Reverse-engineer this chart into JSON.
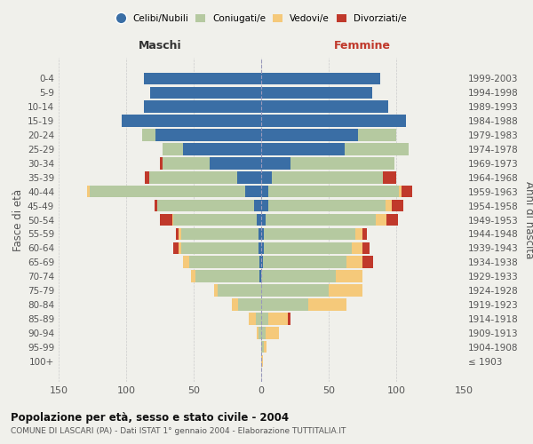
{
  "age_groups": [
    "100+",
    "95-99",
    "90-94",
    "85-89",
    "80-84",
    "75-79",
    "70-74",
    "65-69",
    "60-64",
    "55-59",
    "50-54",
    "45-49",
    "40-44",
    "35-39",
    "30-34",
    "25-29",
    "20-24",
    "15-19",
    "10-14",
    "5-9",
    "0-4"
  ],
  "birth_years": [
    "≤ 1903",
    "1904-1908",
    "1909-1913",
    "1914-1918",
    "1919-1923",
    "1924-1928",
    "1929-1933",
    "1934-1938",
    "1939-1943",
    "1944-1948",
    "1949-1953",
    "1954-1958",
    "1959-1963",
    "1964-1968",
    "1969-1973",
    "1974-1978",
    "1979-1983",
    "1984-1988",
    "1989-1993",
    "1994-1998",
    "1999-2003"
  ],
  "colors": {
    "celibi": "#3a6ea5",
    "coniugati": "#b5c9a0",
    "vedovi": "#f5c97a",
    "divorziati": "#c0392b"
  },
  "male": {
    "celibi": [
      0,
      0,
      0,
      0,
      0,
      0,
      1,
      1,
      2,
      2,
      3,
      5,
      12,
      18,
      38,
      58,
      78,
      103,
      87,
      82,
      87
    ],
    "coniugati": [
      0,
      0,
      2,
      4,
      17,
      32,
      48,
      52,
      57,
      57,
      62,
      72,
      115,
      65,
      35,
      15,
      10,
      0,
      0,
      0,
      0
    ],
    "vedovi": [
      0,
      0,
      1,
      5,
      5,
      3,
      3,
      5,
      2,
      2,
      1,
      0,
      2,
      0,
      0,
      0,
      0,
      0,
      0,
      0,
      0
    ],
    "divorziati": [
      0,
      0,
      0,
      0,
      0,
      0,
      0,
      0,
      4,
      2,
      9,
      2,
      0,
      3,
      2,
      0,
      0,
      0,
      0,
      0,
      0
    ]
  },
  "female": {
    "nubili": [
      0,
      0,
      0,
      0,
      0,
      0,
      0,
      1,
      2,
      2,
      3,
      5,
      5,
      8,
      22,
      62,
      72,
      107,
      94,
      82,
      88
    ],
    "coniugate": [
      0,
      2,
      3,
      5,
      35,
      50,
      55,
      62,
      65,
      68,
      82,
      87,
      97,
      82,
      77,
      47,
      28,
      0,
      0,
      0,
      0
    ],
    "vedove": [
      1,
      2,
      10,
      15,
      28,
      25,
      20,
      12,
      8,
      5,
      8,
      5,
      2,
      0,
      0,
      0,
      0,
      0,
      0,
      0,
      0
    ],
    "divorziate": [
      0,
      0,
      0,
      2,
      0,
      0,
      0,
      8,
      5,
      3,
      8,
      8,
      8,
      10,
      0,
      0,
      0,
      0,
      0,
      0,
      0
    ]
  },
  "xlim": [
    -150,
    150
  ],
  "xticks": [
    -150,
    -100,
    -50,
    0,
    50,
    100,
    150
  ],
  "xticklabels": [
    "150",
    "100",
    "50",
    "0",
    "50",
    "100",
    "150"
  ],
  "title": "Popolazione per età, sesso e stato civile - 2004",
  "subtitle": "COMUNE DI LASCARI (PA) - Dati ISTAT 1° gennaio 2004 - Elaborazione TUTTITALIA.IT",
  "ylabel_left": "Fasce di età",
  "ylabel_right": "Anni di nascita",
  "label_maschi": "Maschi",
  "label_femmine": "Femmine",
  "legend_labels": [
    "Celibi/Nubili",
    "Coniugati/e",
    "Vedovi/e",
    "Divorziati/e"
  ],
  "background_color": "#f0f0eb"
}
